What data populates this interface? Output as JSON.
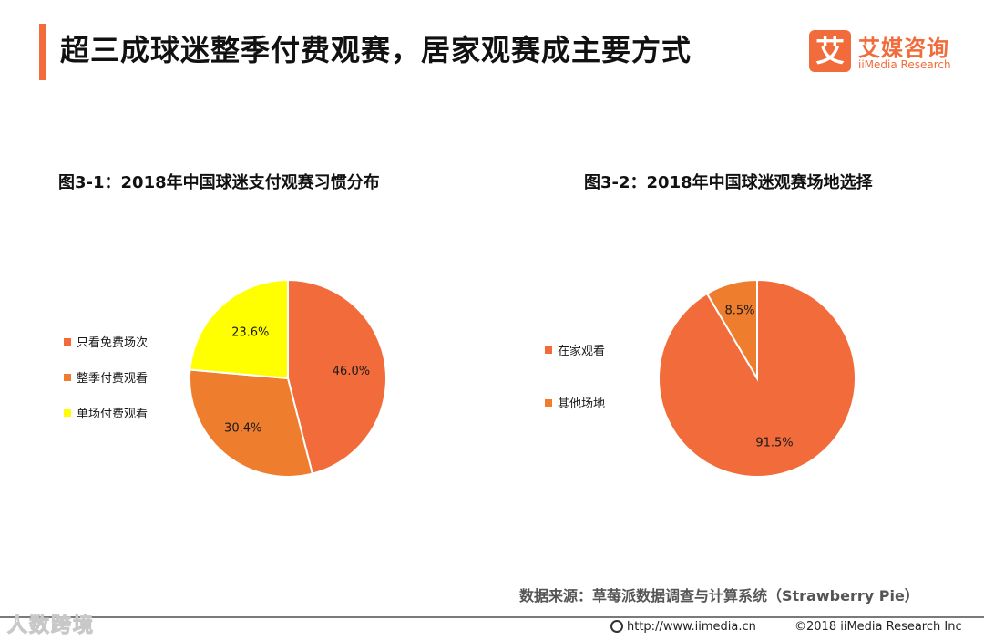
{
  "header": {
    "title": "超三成球迷整季付费观赛，居家观赛成主要方式",
    "logo_mark": "艾",
    "logo_cn": "艾媒咨询",
    "logo_en": "iiMedia Research"
  },
  "colors": {
    "accent": "#f26b3a",
    "orange_red": "#f26b3a",
    "orange": "#ee7d2d",
    "yellow": "#ffff00",
    "footer_line": "#7a7a7a"
  },
  "chart_data": [
    {
      "type": "pie",
      "title": "图3-1：2018年中国球迷支付观赛习惯分布",
      "categories": [
        "只看免费场次",
        "整季付费观看",
        "单场付费观看"
      ],
      "values": [
        46.0,
        30.4,
        23.6
      ],
      "labels": [
        "46.0%",
        "30.4%",
        "23.6%"
      ],
      "colors": [
        "#f26b3a",
        "#ee7d2d",
        "#ffff00"
      ],
      "start_angle_deg": 0,
      "direction": "clockwise",
      "legend_position": "left"
    },
    {
      "type": "pie",
      "title": "图3-2：2018年中国球迷观赛场地选择",
      "categories": [
        "在家观看",
        "其他场地"
      ],
      "values": [
        91.5,
        8.5
      ],
      "labels": [
        "91.5%",
        "8.5%"
      ],
      "colors": [
        "#f26b3a",
        "#ee7d2d"
      ],
      "start_angle_deg": 0,
      "direction": "clockwise",
      "legend_position": "left"
    }
  ],
  "footer": {
    "source": "数据来源：草莓派数据调查与计算系统（Strawberry Pie）",
    "url": "http://www.iimedia.cn",
    "copyright": "©2018  iiMedia Research  Inc",
    "watermark": "人数跨境"
  }
}
